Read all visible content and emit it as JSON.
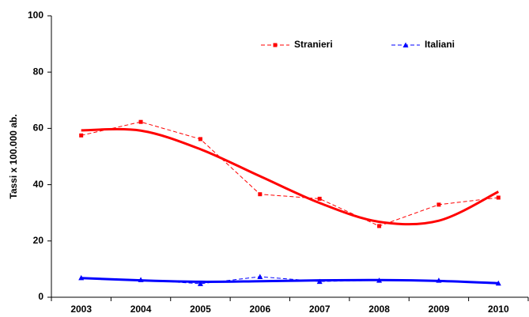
{
  "chart_data": {
    "type": "line",
    "y_label": "Tassi x 100.000 ab.",
    "categories": [
      "2003",
      "2004",
      "2005",
      "2006",
      "2007",
      "2008",
      "2009",
      "2010"
    ],
    "series": [
      {
        "name": "Stranieri",
        "color": "#ff0000",
        "marker": "square",
        "values": [
          57.5,
          62.3,
          56.2,
          36.6,
          35.0,
          25.3,
          32.9,
          35.4
        ],
        "trend": [
          59.3,
          59.2,
          52.6,
          43.0,
          33.5,
          26.8,
          27.2,
          37.5
        ]
      },
      {
        "name": "Italiani",
        "color": "#0000ff",
        "marker": "triangle",
        "values": [
          6.9,
          6.2,
          4.8,
          7.3,
          5.6,
          6.0,
          6.0,
          5.0
        ],
        "trend": [
          6.8,
          6.0,
          5.5,
          5.7,
          6.0,
          6.1,
          5.8,
          5.0
        ]
      }
    ],
    "ylim": [
      0,
      100
    ],
    "yticks": [
      0,
      20,
      40,
      60,
      80,
      100
    ],
    "grid": false,
    "legend": "top"
  }
}
